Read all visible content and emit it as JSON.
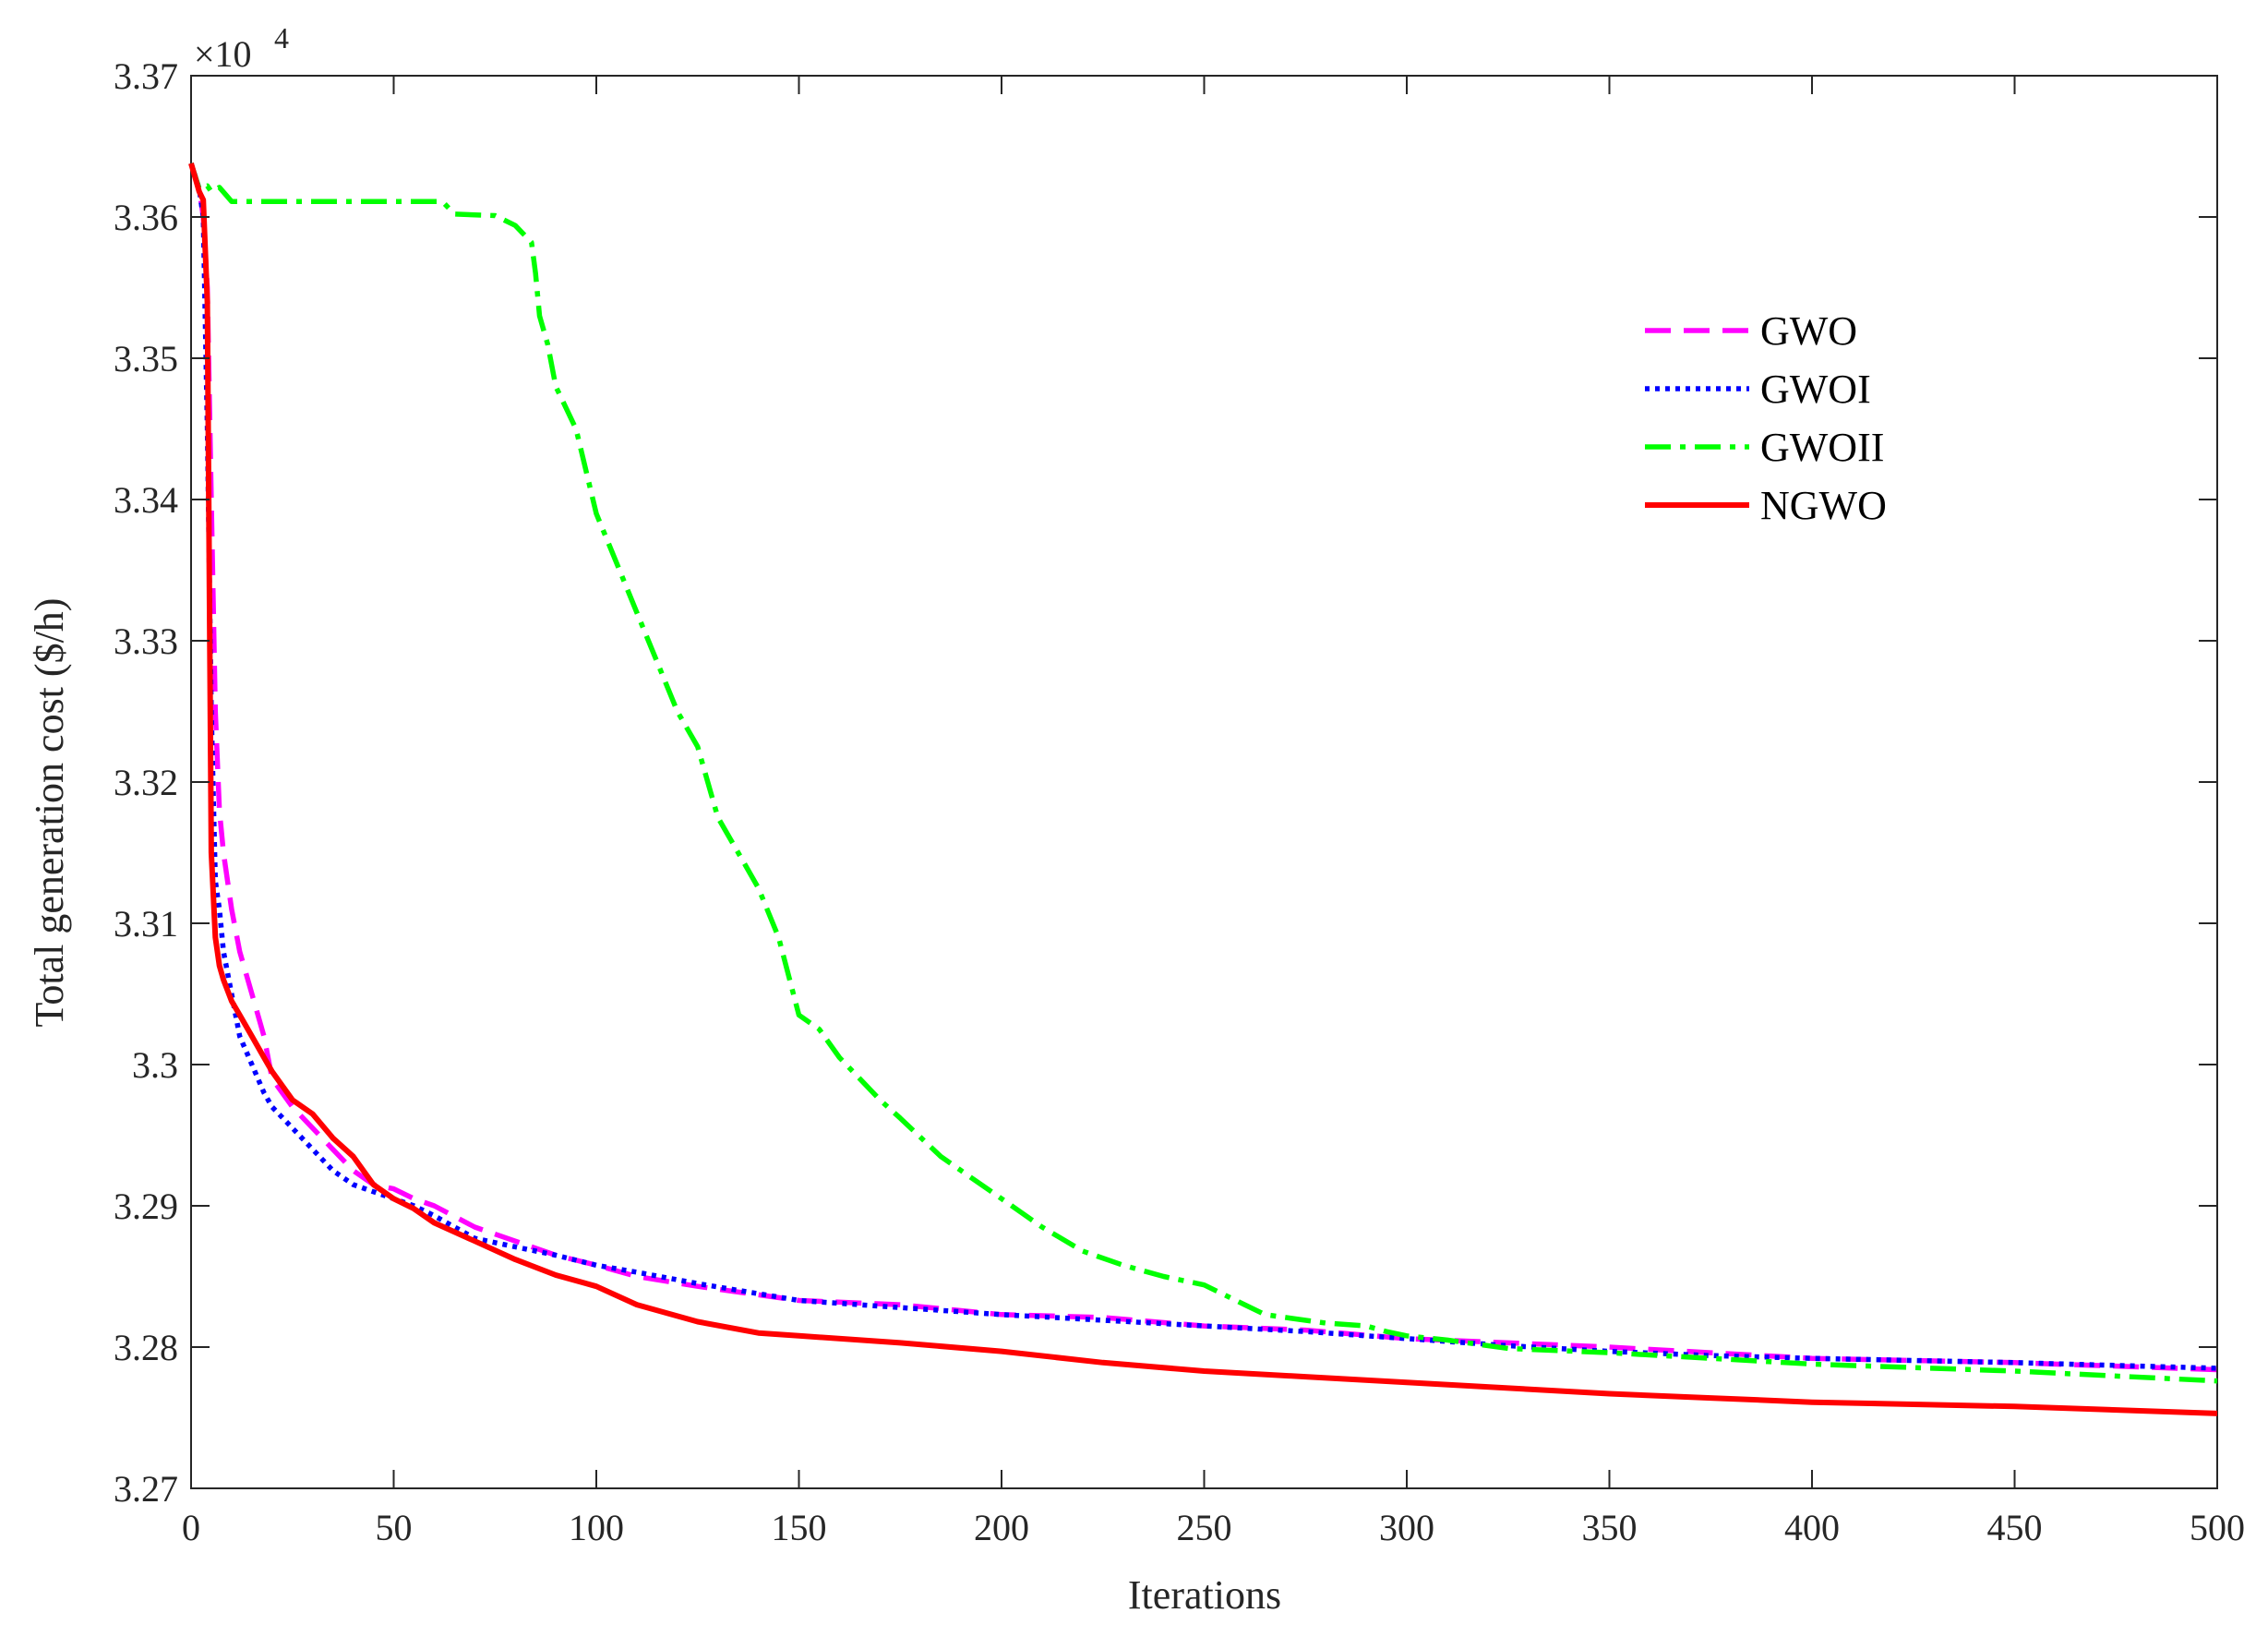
{
  "chart_data": {
    "type": "line",
    "title": "",
    "xlabel": "Iterations",
    "ylabel": "Total generation cost ($/h)",
    "y_multiplier_label": "×10",
    "y_multiplier_exponent": "4",
    "xlim": [
      0,
      500
    ],
    "ylim": [
      3.27,
      3.37
    ],
    "x_ticks": [
      0,
      50,
      100,
      150,
      200,
      250,
      300,
      350,
      400,
      450,
      500
    ],
    "x_tick_labels": [
      "0",
      "50",
      "100",
      "150",
      "200",
      "250",
      "300",
      "350",
      "400",
      "450",
      "500"
    ],
    "y_ticks": [
      3.27,
      3.28,
      3.29,
      3.3,
      3.31,
      3.32,
      3.33,
      3.34,
      3.35,
      3.36,
      3.37
    ],
    "y_tick_labels": [
      "3.27",
      "3.28",
      "3.29",
      "3.3",
      "3.31",
      "3.32",
      "3.33",
      "3.34",
      "3.35",
      "3.36",
      "3.37"
    ],
    "grid": false,
    "legend_position": "upper-right",
    "series": [
      {
        "name": "GWO",
        "color": "#FF00FF",
        "style": "dashed",
        "x": [
          0,
          2,
          3,
          4,
          5,
          6,
          7,
          8,
          10,
          12,
          15,
          18,
          20,
          25,
          30,
          35,
          40,
          45,
          50,
          55,
          60,
          70,
          80,
          90,
          100,
          110,
          125,
          150,
          175,
          200,
          225,
          250,
          275,
          300,
          325,
          350,
          375,
          400,
          450,
          500
        ],
        "y": [
          3.3638,
          3.362,
          3.36,
          3.355,
          3.34,
          3.325,
          3.318,
          3.315,
          3.311,
          3.308,
          3.305,
          3.302,
          3.299,
          3.297,
          3.2955,
          3.294,
          3.2925,
          3.2915,
          3.2912,
          3.2905,
          3.29,
          3.2885,
          3.2875,
          3.2865,
          3.2858,
          3.285,
          3.2843,
          3.2833,
          3.283,
          3.2823,
          3.2821,
          3.2815,
          3.2812,
          3.2806,
          3.2803,
          3.28,
          3.2796,
          3.2792,
          3.2789,
          3.2784
        ]
      },
      {
        "name": "GWOI",
        "color": "#0000FF",
        "style": "dotted",
        "x": [
          0,
          2,
          3,
          4,
          5,
          6,
          7,
          8,
          10,
          12,
          15,
          18,
          20,
          25,
          30,
          35,
          40,
          45,
          50,
          55,
          60,
          70,
          80,
          90,
          100,
          110,
          125,
          150,
          175,
          200,
          225,
          250,
          275,
          300,
          325,
          350,
          375,
          400,
          450,
          500
        ],
        "y": [
          3.3638,
          3.362,
          3.36,
          3.345,
          3.325,
          3.313,
          3.311,
          3.308,
          3.305,
          3.302,
          3.3,
          3.298,
          3.297,
          3.2955,
          3.294,
          3.2925,
          3.2915,
          3.291,
          3.2905,
          3.29,
          3.2893,
          3.2877,
          3.2871,
          3.2865,
          3.2858,
          3.2853,
          3.2845,
          3.2833,
          3.2828,
          3.2823,
          3.2819,
          3.2815,
          3.2811,
          3.2806,
          3.2801,
          3.2797,
          3.2794,
          3.2792,
          3.2789,
          3.2785
        ]
      },
      {
        "name": "GWOII",
        "color": "#00FF00",
        "style": "dashdot",
        "x": [
          0,
          2,
          4,
          5,
          7,
          10,
          20,
          40,
          60,
          62,
          65,
          75,
          80,
          84,
          85,
          86,
          88,
          90,
          95,
          100,
          105,
          110,
          115,
          120,
          125,
          130,
          135,
          140,
          145,
          150,
          155,
          160,
          165,
          170,
          175,
          185,
          190,
          200,
          210,
          220,
          230,
          240,
          250,
          255,
          260,
          265,
          270,
          280,
          290,
          295,
          300,
          310,
          325,
          350,
          375,
          400,
          450,
          500
        ],
        "y": [
          3.3638,
          3.362,
          3.3622,
          3.3618,
          3.3621,
          3.3611,
          3.3611,
          3.3611,
          3.3611,
          3.3611,
          3.3602,
          3.3601,
          3.3594,
          3.3582,
          3.356,
          3.353,
          3.351,
          3.348,
          3.345,
          3.339,
          3.3355,
          3.332,
          3.3285,
          3.325,
          3.3225,
          3.3175,
          3.315,
          3.3125,
          3.309,
          3.3035,
          3.3025,
          3.3005,
          3.299,
          3.2975,
          3.2962,
          3.2935,
          3.2925,
          3.2905,
          3.2885,
          3.2868,
          3.2858,
          3.285,
          3.2844,
          3.2837,
          3.283,
          3.2823,
          3.2821,
          3.2817,
          3.2815,
          3.2811,
          3.2808,
          3.2805,
          3.2799,
          3.2796,
          3.2792,
          3.2788,
          3.2783,
          3.2776
        ]
      },
      {
        "name": "NGWO",
        "color": "#FF0000",
        "style": "solid",
        "x": [
          0,
          1,
          2,
          3,
          4,
          5,
          6,
          7,
          8,
          10,
          12,
          15,
          18,
          20,
          25,
          30,
          35,
          40,
          45,
          50,
          55,
          60,
          70,
          80,
          90,
          100,
          110,
          125,
          140,
          150,
          175,
          200,
          225,
          250,
          275,
          300,
          325,
          350,
          375,
          400,
          450,
          500
        ],
        "y": [
          3.3638,
          3.3628,
          3.3618,
          3.3612,
          3.354,
          3.315,
          3.309,
          3.307,
          3.306,
          3.3045,
          3.3035,
          3.302,
          3.3005,
          3.2995,
          3.2975,
          3.2965,
          3.2948,
          3.2935,
          3.2915,
          3.2905,
          3.2898,
          3.2888,
          3.2875,
          3.2862,
          3.2851,
          3.2843,
          3.283,
          3.2818,
          3.281,
          3.2808,
          3.2803,
          3.2797,
          3.2789,
          3.2783,
          3.2779,
          3.2775,
          3.2771,
          3.2767,
          3.2764,
          3.2761,
          3.2758,
          3.2753
        ]
      }
    ]
  }
}
